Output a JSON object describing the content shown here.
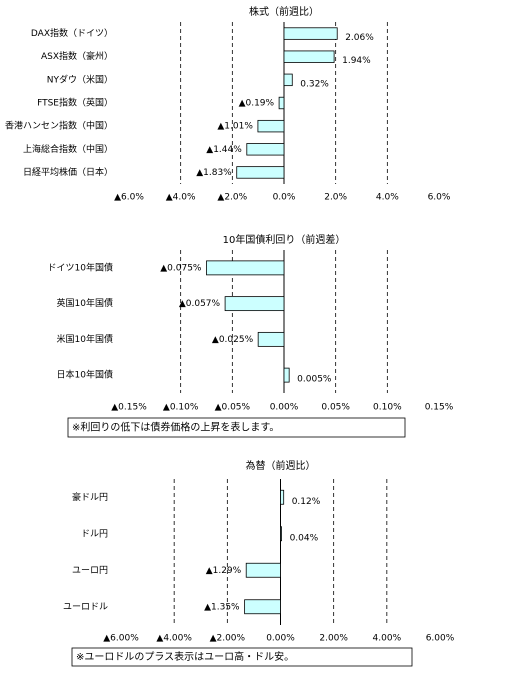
{
  "chart_data": [
    {
      "type": "bar",
      "orientation": "horizontal",
      "title": "株式（前週比）",
      "categories": [
        "DAX指数（ドイツ）",
        "ASX指数（豪州）",
        "NYダウ（米国）",
        "FTSE指数（英国）",
        "香港ハンセン指数（中国）",
        "上海総合指数（中国）",
        "日経平均株価（日本）"
      ],
      "values": [
        2.06,
        1.94,
        0.32,
        -0.19,
        -1.01,
        -1.44,
        -1.83
      ],
      "value_labels": [
        "2.06%",
        "1.94%",
        "0.32%",
        "▲0.19%",
        "▲1.01%",
        "▲1.44%",
        "▲1.83%"
      ],
      "xlim": [
        -6,
        6
      ],
      "xticks": [
        {
          "value": -6,
          "label": "▲6.0%"
        },
        {
          "value": -4,
          "label": "▲4.0%"
        },
        {
          "value": -2,
          "label": "▲2.0%"
        },
        {
          "value": 0,
          "label": "0.0%"
        },
        {
          "value": 2,
          "label": "2.0%"
        },
        {
          "value": 4,
          "label": "4.0%"
        },
        {
          "value": 6,
          "label": "6.0%"
        }
      ],
      "color": "#ccffff",
      "negative_color": "#ff0000",
      "grid": true
    },
    {
      "type": "bar",
      "orientation": "horizontal",
      "title": "10年国債利回り（前週差）",
      "categories": [
        "ドイツ10年国債",
        "英国10年国債",
        "米国10年国債",
        "日本10年国債"
      ],
      "values": [
        -0.075,
        -0.057,
        -0.025,
        0.005
      ],
      "value_labels": [
        "▲0.075%",
        "▲0.057%",
        "▲0.025%",
        "0.005%"
      ],
      "xlim": [
        -0.15,
        0.15
      ],
      "xticks": [
        {
          "value": -0.15,
          "label": "▲0.15%"
        },
        {
          "value": -0.1,
          "label": "▲0.10%"
        },
        {
          "value": -0.05,
          "label": "▲0.05%"
        },
        {
          "value": 0,
          "label": "0.00%"
        },
        {
          "value": 0.05,
          "label": "0.05%"
        },
        {
          "value": 0.1,
          "label": "0.10%"
        },
        {
          "value": 0.15,
          "label": "0.15%"
        }
      ],
      "color": "#ccffff",
      "negative_color": "#ff0000",
      "grid": true,
      "note": "※利回りの低下は債券価格の上昇を表します。"
    },
    {
      "type": "bar",
      "orientation": "horizontal",
      "title": "為替（前週比）",
      "categories": [
        "豪ドル円",
        "ドル円",
        "ユーロ円",
        "ユーロドル"
      ],
      "values": [
        0.12,
        0.04,
        -1.29,
        -1.35
      ],
      "value_labels": [
        "0.12%",
        "0.04%",
        "▲1.29%",
        "▲1.35%"
      ],
      "xlim": [
        -6,
        6
      ],
      "xticks": [
        {
          "value": -6,
          "label": "▲6.00%"
        },
        {
          "value": -4,
          "label": "▲4.00%"
        },
        {
          "value": -2,
          "label": "▲2.00%"
        },
        {
          "value": 0,
          "label": "0.00%"
        },
        {
          "value": 2,
          "label": "2.00%"
        },
        {
          "value": 4,
          "label": "4.00%"
        },
        {
          "value": 6,
          "label": "6.00%"
        }
      ],
      "color": "#ccffff",
      "negative_color": "#ff0000",
      "grid": true,
      "note": "※ユーロドルのプラス表示はユーロ高・ドル安。"
    }
  ]
}
